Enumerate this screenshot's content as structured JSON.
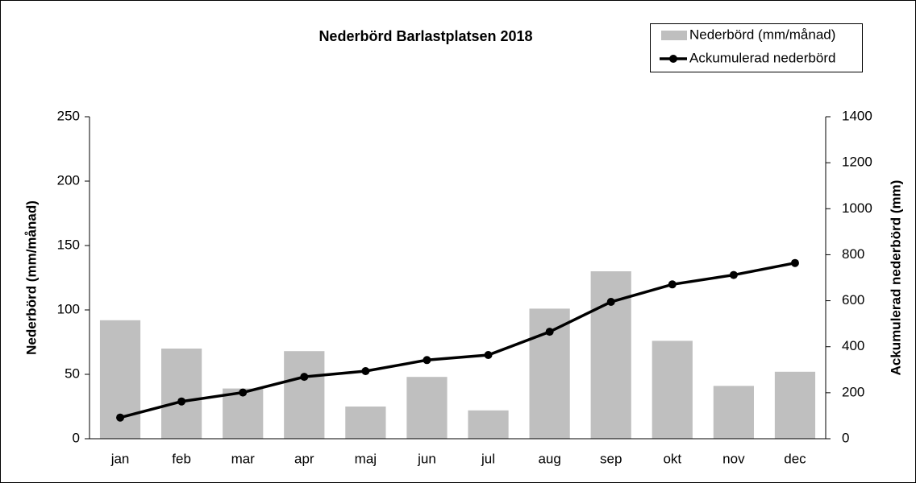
{
  "chart_data": {
    "type": "bar_line",
    "title": "Nederbörd Barlastplatsen 2018",
    "y_label": "Nederbörd (mm/månad)",
    "y2_label": "Ackumulerad nederbörd (mm)",
    "categories": [
      "jan",
      "feb",
      "mar",
      "apr",
      "maj",
      "jun",
      "jul",
      "aug",
      "sep",
      "okt",
      "nov",
      "dec"
    ],
    "series": [
      {
        "name": "Nederbörd (mm/månad)",
        "type": "bar",
        "color": "#bfbfbf",
        "values": [
          92,
          70,
          39,
          68,
          25,
          48,
          22,
          101,
          130,
          76,
          41,
          52
        ]
      },
      {
        "name": "Ackumulerad nederbörd",
        "type": "line",
        "axis": "y2",
        "color": "#000000",
        "values": [
          92,
          162,
          201,
          269,
          294,
          342,
          364,
          465,
          595,
          671,
          712,
          764
        ]
      }
    ],
    "ylim": [
      0,
      250
    ],
    "yticks": [
      0,
      50,
      100,
      150,
      200,
      250
    ],
    "y2lim": [
      0,
      1400
    ],
    "y2ticks": [
      0,
      200,
      400,
      600,
      800,
      1000,
      1200,
      1400
    ],
    "grid": false,
    "legend": "top-right"
  }
}
